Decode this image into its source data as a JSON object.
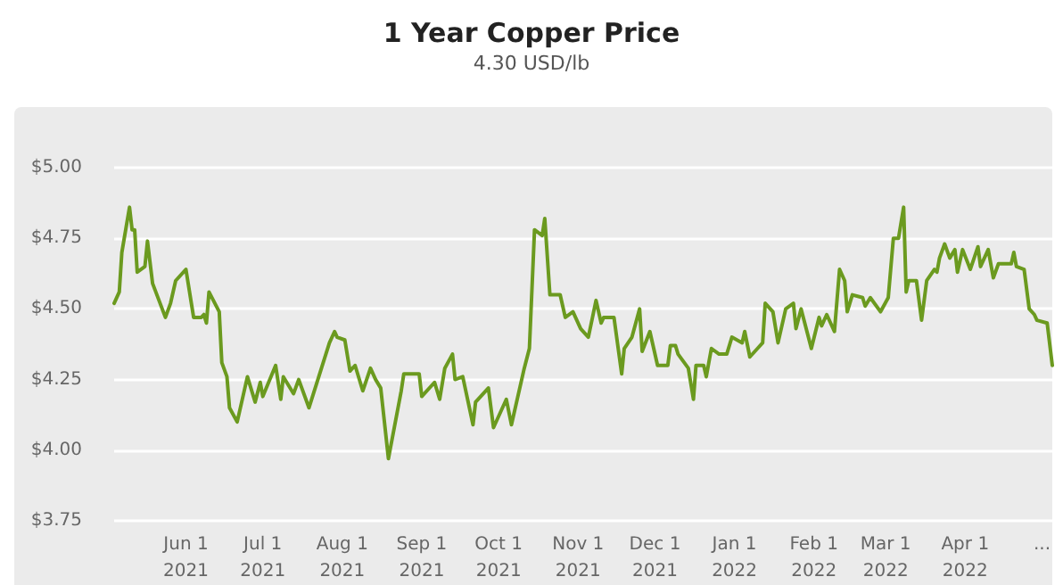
{
  "chart_data": {
    "type": "line",
    "title": "1 Year Copper Price",
    "subtitle": "4.30 USD/lb",
    "x": [
      "2021-05-04",
      "2021-05-06",
      "2021-05-07",
      "2021-05-10",
      "2021-05-11",
      "2021-05-12",
      "2021-05-13",
      "2021-05-16",
      "2021-05-17",
      "2021-05-19",
      "2021-05-24",
      "2021-05-26",
      "2021-05-28",
      "2021-06-01",
      "2021-06-04",
      "2021-06-07",
      "2021-06-08",
      "2021-06-09",
      "2021-06-10",
      "2021-06-14",
      "2021-06-15",
      "2021-06-17",
      "2021-06-18",
      "2021-06-21",
      "2021-06-25",
      "2021-06-28",
      "2021-06-30",
      "2021-07-01",
      "2021-07-06",
      "2021-07-08",
      "2021-07-09",
      "2021-07-13",
      "2021-07-15",
      "2021-07-19",
      "2021-07-27",
      "2021-07-29",
      "2021-07-30",
      "2021-08-02",
      "2021-08-04",
      "2021-08-06",
      "2021-08-09",
      "2021-08-12",
      "2021-08-14",
      "2021-08-16",
      "2021-08-19",
      "2021-08-24",
      "2021-08-25",
      "2021-08-31",
      "2021-09-01",
      "2021-09-06",
      "2021-09-08",
      "2021-09-10",
      "2021-09-13",
      "2021-09-14",
      "2021-09-17",
      "2021-09-21",
      "2021-09-22",
      "2021-09-27",
      "2021-09-29",
      "2021-10-04",
      "2021-10-06",
      "2021-10-11",
      "2021-10-13",
      "2021-10-15",
      "2021-10-18",
      "2021-10-19",
      "2021-10-21",
      "2021-10-25",
      "2021-10-27",
      "2021-10-30",
      "2021-11-02",
      "2021-11-05",
      "2021-11-08",
      "2021-11-10",
      "2021-11-11",
      "2021-11-15",
      "2021-11-18",
      "2021-11-19",
      "2021-11-22",
      "2021-11-25",
      "2021-11-26",
      "2021-11-29",
      "2021-12-02",
      "2021-12-06",
      "2021-12-07",
      "2021-12-09",
      "2021-12-10",
      "2021-12-14",
      "2021-12-16",
      "2021-12-17",
      "2021-12-20",
      "2021-12-21",
      "2021-12-23",
      "2021-12-26",
      "2021-12-29",
      "2021-12-31",
      "2022-01-04",
      "2022-01-05",
      "2022-01-07",
      "2022-01-10",
      "2022-01-12",
      "2022-01-13",
      "2022-01-16",
      "2022-01-18",
      "2022-01-21",
      "2022-01-24",
      "2022-01-25",
      "2022-01-27",
      "2022-01-31",
      "2022-02-03",
      "2022-02-04",
      "2022-02-06",
      "2022-02-09",
      "2022-02-11",
      "2022-02-13",
      "2022-02-14",
      "2022-02-16",
      "2022-02-20",
      "2022-02-21",
      "2022-02-23",
      "2022-02-27",
      "2022-03-02",
      "2022-03-04",
      "2022-03-06",
      "2022-03-08",
      "2022-03-09",
      "2022-03-10",
      "2022-03-13",
      "2022-03-15",
      "2022-03-17",
      "2022-03-20",
      "2022-03-21",
      "2022-03-22",
      "2022-03-24",
      "2022-03-26",
      "2022-03-28",
      "2022-03-29",
      "2022-03-31",
      "2022-04-03",
      "2022-04-06",
      "2022-04-07",
      "2022-04-10",
      "2022-04-12",
      "2022-04-14",
      "2022-04-19",
      "2022-04-20",
      "2022-04-21",
      "2022-04-24",
      "2022-04-26",
      "2022-04-28",
      "2022-04-29",
      "2022-05-03",
      "2022-05-05"
    ],
    "series": [
      {
        "color": "#6b9a1f",
        "values": [
          4.52,
          4.56,
          4.7,
          4.86,
          4.78,
          4.78,
          4.63,
          4.65,
          4.74,
          4.59,
          4.47,
          4.52,
          4.6,
          4.64,
          4.47,
          4.47,
          4.48,
          4.45,
          4.56,
          4.49,
          4.31,
          4.26,
          4.15,
          4.1,
          4.26,
          4.17,
          4.24,
          4.19,
          4.3,
          4.18,
          4.26,
          4.2,
          4.25,
          4.15,
          4.38,
          4.42,
          4.4,
          4.39,
          4.28,
          4.3,
          4.21,
          4.29,
          4.25,
          4.22,
          3.97,
          4.21,
          4.27,
          4.27,
          4.19,
          4.24,
          4.18,
          4.29,
          4.34,
          4.25,
          4.26,
          4.09,
          4.17,
          4.22,
          4.08,
          4.18,
          4.09,
          4.29,
          4.36,
          4.78,
          4.76,
          4.82,
          4.55,
          4.55,
          4.47,
          4.49,
          4.43,
          4.4,
          4.53,
          4.45,
          4.47,
          4.47,
          4.27,
          4.36,
          4.4,
          4.5,
          4.35,
          4.42,
          4.3,
          4.3,
          4.37,
          4.37,
          4.34,
          4.29,
          4.18,
          4.3,
          4.3,
          4.26,
          4.36,
          4.34,
          4.34,
          4.4,
          4.38,
          4.42,
          4.33,
          4.36,
          4.38,
          4.52,
          4.49,
          4.38,
          4.5,
          4.52,
          4.43,
          4.5,
          4.36,
          4.47,
          4.44,
          4.48,
          4.42,
          4.64,
          4.6,
          4.49,
          4.55,
          4.54,
          4.51,
          4.54,
          4.49,
          4.54,
          4.75,
          4.75,
          4.86,
          4.56,
          4.6,
          4.6,
          4.46,
          4.6,
          4.64,
          4.63,
          4.68,
          4.73,
          4.68,
          4.71,
          4.63,
          4.71,
          4.64,
          4.72,
          4.65,
          4.71,
          4.61,
          4.66,
          4.66,
          4.7,
          4.65,
          4.64,
          4.5,
          4.48,
          4.46,
          4.45,
          4.3
        ]
      }
    ],
    "xlim": [
      "2021-05-04",
      "2022-05-05"
    ],
    "xticks": [
      {
        "value": "2021-06-01",
        "label": "Jun 1\n2021"
      },
      {
        "value": "2021-07-01",
        "label": "Jul 1\n2021"
      },
      {
        "value": "2021-08-01",
        "label": "Aug 1\n2021"
      },
      {
        "value": "2021-09-01",
        "label": "Sep 1\n2021"
      },
      {
        "value": "2021-10-01",
        "label": "Oct 1\n2021"
      },
      {
        "value": "2021-11-01",
        "label": "Nov 1\n2021"
      },
      {
        "value": "2021-12-01",
        "label": "Dec 1\n2021"
      },
      {
        "value": "2022-01-01",
        "label": "Jan 1\n2022"
      },
      {
        "value": "2022-02-01",
        "label": "Feb 1\n2022"
      },
      {
        "value": "2022-03-01",
        "label": "Mar 1\n2022"
      },
      {
        "value": "2022-04-01",
        "label": "Apr 1\n2022"
      },
      {
        "value": "2022-05-01",
        "label": "..."
      }
    ],
    "ylim": [
      3.75,
      5.0
    ],
    "yticks": [
      {
        "value": 3.75,
        "label": "$3.75"
      },
      {
        "value": 4.0,
        "label": "$4.00"
      },
      {
        "value": 4.25,
        "label": "$4.25"
      },
      {
        "value": 4.5,
        "label": "$4.50"
      },
      {
        "value": 4.75,
        "label": "$4.75"
      },
      {
        "value": 5.0,
        "label": "$5.00"
      }
    ],
    "grid": "y",
    "marker": "none",
    "line_style": "solid"
  }
}
